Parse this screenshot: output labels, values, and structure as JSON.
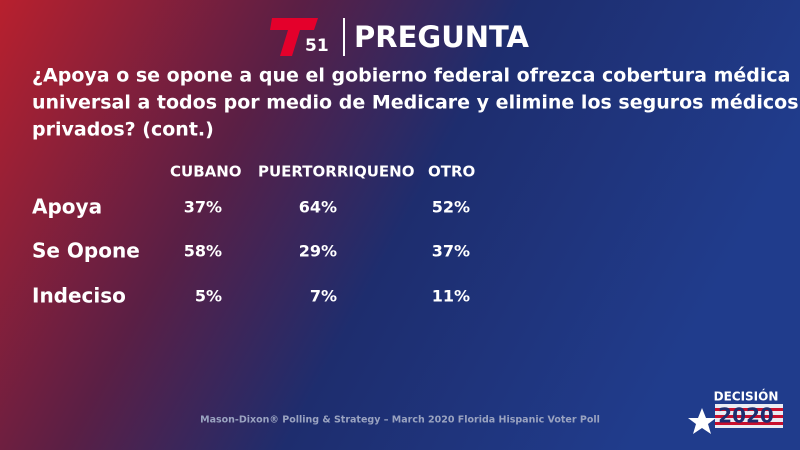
{
  "header": {
    "logo_number": "51",
    "title": "PREGUNTA"
  },
  "question": {
    "lines": [
      "¿Apoya o se opone a que el gobierno federal ofrezca cobertura médica",
      "universal a todos por medio de Medicare y elimine los seguros médicos",
      "privados?  (cont.)"
    ]
  },
  "table": {
    "columns": [
      "CUBANO",
      "PUERTORRIQUENO",
      "OTRO"
    ],
    "rows": [
      [
        "Apoya",
        "37%",
        "64%",
        "52%"
      ],
      [
        "Se Opone",
        "58%",
        "29%",
        "37%"
      ],
      [
        "Indeciso",
        "5%",
        "7%",
        "11%"
      ]
    ]
  },
  "footer": {
    "source": "Mason-Dixon® Polling & Strategy – March 2020 Florida Hispanic Voter Poll"
  },
  "badge": {
    "word": "DECISIÓN",
    "year": "2020"
  }
}
